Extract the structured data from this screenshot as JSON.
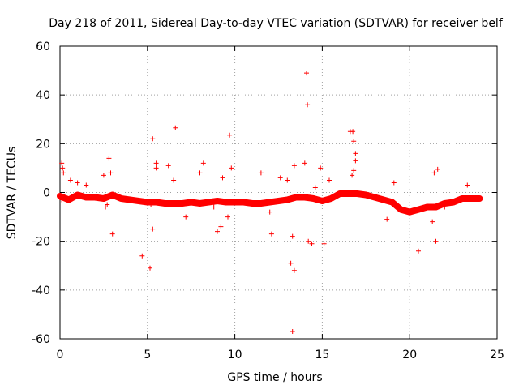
{
  "chart_data": {
    "type": "scatter",
    "title": "Day 218 of 2011, Sidereal Day-to-day VTEC variation (SDTVAR) for receiver belf",
    "xlabel": "GPS time / hours",
    "ylabel": "SDTVAR / TECUs",
    "xlim": [
      0,
      25
    ],
    "ylim": [
      -60,
      60
    ],
    "xticks": [
      0,
      5,
      10,
      15,
      20,
      25
    ],
    "yticks": [
      -60,
      -40,
      -20,
      0,
      20,
      40,
      60
    ],
    "grid": true,
    "color": "#ff0000",
    "marker": "plus",
    "main_band": {
      "x": [
        0,
        0.5,
        1,
        1.5,
        2,
        2.5,
        3,
        3.5,
        4,
        4.5,
        5,
        5.5,
        6,
        6.5,
        7,
        7.5,
        8,
        8.5,
        9,
        9.5,
        10,
        10.5,
        11,
        11.5,
        12,
        12.5,
        13,
        13.5,
        14,
        14.5,
        15,
        15.5,
        16,
        16.5,
        17,
        17.5,
        18,
        18.5,
        19,
        19.5,
        20,
        20.5,
        21,
        21.5,
        22,
        22.5,
        23,
        23.5,
        24
      ],
      "y": [
        -1.5,
        -3,
        -1,
        -2,
        -2,
        -2.5,
        -1,
        -2.5,
        -3,
        -3.5,
        -4,
        -4,
        -4.5,
        -4.5,
        -4.5,
        -4,
        -4.5,
        -4,
        -3.5,
        -4,
        -4,
        -4,
        -4.5,
        -4.5,
        -4,
        -3.5,
        -3,
        -2,
        -2,
        -2.5,
        -3.5,
        -2.5,
        -0.5,
        -0.5,
        -0.5,
        -1,
        -2,
        -3,
        -4,
        -7,
        -8,
        -7,
        -6,
        -6,
        -4.5,
        -4,
        -2.5,
        -2.5,
        -2.5
      ]
    },
    "scatter_points": {
      "x": [
        0.1,
        0.15,
        0.1,
        0.2,
        0.6,
        1.0,
        1.5,
        2.5,
        2.6,
        2.8,
        2.7,
        3.0,
        2.9,
        4.7,
        5.15,
        5.3,
        5.5,
        5.3,
        5.5,
        5.2,
        6.2,
        6.6,
        6.5,
        7.2,
        8.2,
        8.0,
        8.8,
        9.0,
        9.2,
        9.3,
        9.7,
        9.8,
        9.6,
        11.5,
        12.1,
        12.0,
        12.6,
        13.2,
        13.3,
        13.4,
        13.3,
        13.0,
        13.4,
        14.1,
        14.15,
        14.0,
        14.2,
        14.4,
        14.6,
        14.9,
        15.1,
        15.4,
        16.6,
        16.75,
        16.8,
        16.9,
        16.8,
        16.7,
        16.9,
        18.7,
        19.1,
        20.5,
        21.5,
        21.6,
        21.4,
        21.3,
        22.0,
        22.8,
        23.3
      ],
      "y": [
        12,
        10,
        -3,
        8,
        5,
        4,
        3,
        7,
        -6,
        14,
        -5,
        -17,
        8,
        -26,
        -31,
        22,
        12,
        -15,
        10,
        -5,
        11,
        26.5,
        5,
        -10,
        12,
        8,
        -6,
        -16,
        -14,
        6,
        23.5,
        10,
        -10,
        8,
        -17,
        -8,
        6,
        -29,
        -57,
        -32,
        -18,
        5,
        11,
        49,
        36,
        12,
        -20,
        -21,
        2,
        10,
        -21,
        5,
        25,
        25,
        21,
        16,
        9,
        7,
        13,
        -11,
        4,
        -24,
        -20,
        9.5,
        8,
        -12,
        -6,
        -3,
        3
      ]
    }
  }
}
